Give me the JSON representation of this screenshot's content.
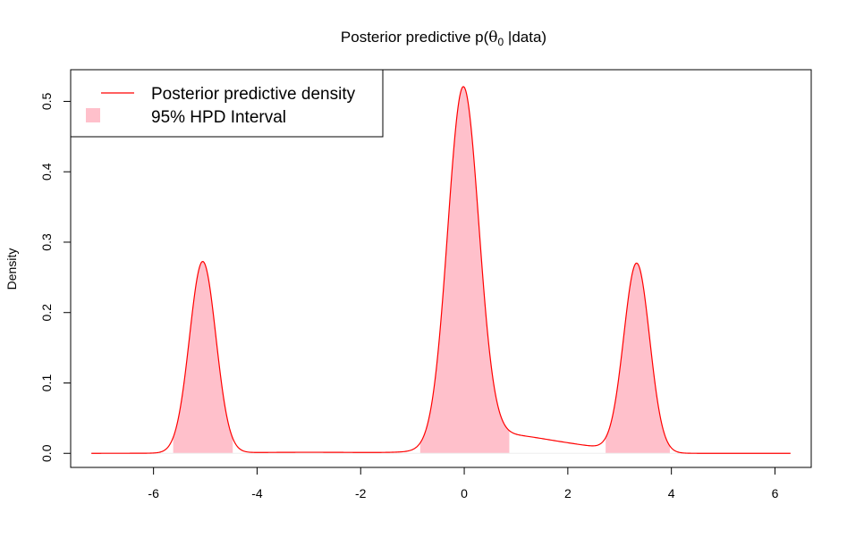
{
  "chart_data": {
    "type": "area",
    "title": {
      "prefix": "Posterior predictive p(",
      "theta": "θ",
      "subscript": "0",
      "suffix": " |data)"
    },
    "xlabel": "",
    "ylabel": "Density",
    "xlim": [
      -7.6,
      6.7
    ],
    "ylim": [
      -0.02,
      0.545
    ],
    "xticks": [
      -6,
      -4,
      -2,
      0,
      2,
      4,
      6
    ],
    "xtick_labels": [
      "-6",
      "-4",
      "-2",
      "0",
      "2",
      "4",
      "6"
    ],
    "yticks": [
      0.0,
      0.1,
      0.2,
      0.3,
      0.4,
      0.5
    ],
    "ytick_labels": [
      "0.0",
      "0.1",
      "0.2",
      "0.3",
      "0.4",
      "0.5"
    ],
    "grid": false,
    "legend": {
      "position": "top-left",
      "entries": [
        {
          "label": "Posterior predictive density",
          "kind": "line",
          "color": "#ff0000"
        },
        {
          "label": "95% HPD Interval",
          "kind": "fill",
          "color": "#ffc0cb"
        }
      ]
    },
    "series": [
      {
        "name": "Posterior predictive density",
        "color": "#ff0000",
        "x_range": [
          -7.2,
          6.3
        ],
        "components": [
          {
            "mean": -5.05,
            "sd": 0.255,
            "height": 0.272
          },
          {
            "mean": -0.02,
            "sd": 0.3,
            "height": 0.505
          },
          {
            "mean": 0.75,
            "sd": 0.8,
            "height": 0.025
          },
          {
            "mean": 3.33,
            "sd": 0.25,
            "height": 0.268
          },
          {
            "mean": 2.2,
            "sd": 0.7,
            "height": 0.008
          },
          {
            "mean": -3.0,
            "sd": 1.5,
            "height": 0.0015
          }
        ]
      }
    ],
    "hpd_intervals": [
      [
        -5.62,
        -4.47
      ],
      [
        -0.85,
        0.87
      ],
      [
        2.73,
        3.97
      ]
    ],
    "fill_color": "#ffc0cb",
    "line_color": "#ff0000"
  }
}
